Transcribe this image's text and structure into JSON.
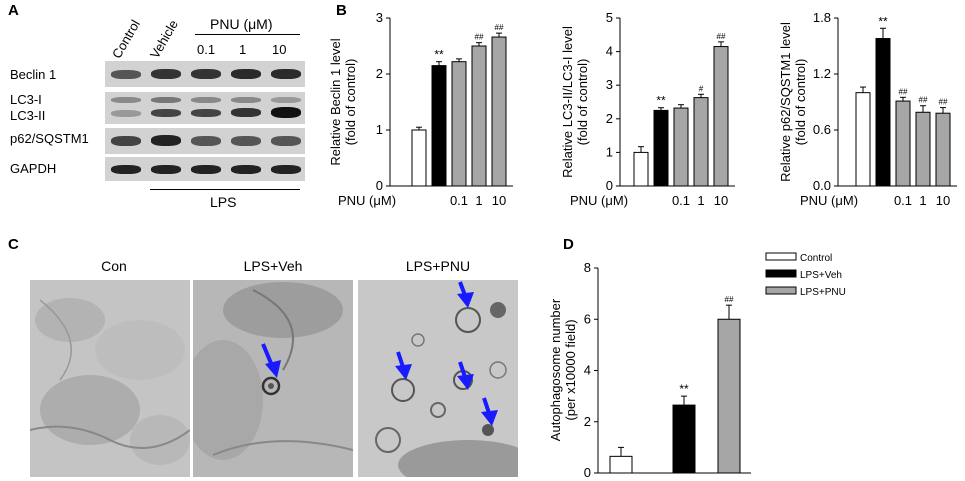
{
  "panel_A": {
    "panel_label": "A",
    "lane_headers": [
      "Control",
      "Vehicle"
    ],
    "pnu_header": "PNU (μM)",
    "doses": [
      "0.1",
      "1",
      "10"
    ],
    "rows": [
      "Beclin 1",
      "LC3-I",
      "LC3-II",
      "p62/SQSTM1",
      "GAPDH"
    ],
    "treatment": "LPS"
  },
  "panel_B": {
    "panel_label": "B"
  },
  "panel_C": {
    "panel_label": "C",
    "images": [
      "Con",
      "LPS+Veh",
      "LPS+PNU"
    ],
    "arrow_color": "#1a1aff"
  },
  "panel_D": {
    "panel_label": "D"
  },
  "colors": {
    "white": "#ffffff",
    "black": "#000000",
    "gray": "#a6a6a6"
  },
  "chart_data": [
    {
      "type": "bar",
      "ylabel": "Relative Beclin 1 level (fold of control)",
      "x_axis_label": "PNU (μM)",
      "categories": [
        "",
        "",
        "0.1",
        "1",
        "10"
      ],
      "values": [
        1.0,
        2.15,
        2.22,
        2.5,
        2.66
      ],
      "errors": [
        0.05,
        0.07,
        0.05,
        0.06,
        0.07
      ],
      "fills": [
        "white",
        "black",
        "gray",
        "gray",
        "gray"
      ],
      "significance": [
        "",
        "**",
        "",
        "##",
        "##"
      ],
      "ylim": [
        0,
        3
      ],
      "yticks": [
        "0",
        "1",
        "2",
        "3"
      ]
    },
    {
      "type": "bar",
      "ylabel": "Relative LC3-II/LC3-I level (fold of control)",
      "x_axis_label": "PNU (μM)",
      "categories": [
        "",
        "",
        "0.1",
        "1",
        "10"
      ],
      "values": [
        1.0,
        2.25,
        2.32,
        2.63,
        4.15
      ],
      "errors": [
        0.17,
        0.08,
        0.1,
        0.1,
        0.14
      ],
      "fills": [
        "white",
        "black",
        "gray",
        "gray",
        "gray"
      ],
      "significance": [
        "",
        "**",
        "",
        "#",
        "##"
      ],
      "ylim": [
        0,
        5
      ],
      "yticks": [
        "0",
        "1",
        "2",
        "3",
        "4",
        "5"
      ]
    },
    {
      "type": "bar",
      "ylabel": "Relative p62/SQSTM1 level (fold of control)",
      "x_axis_label": "PNU (μM)",
      "categories": [
        "",
        "",
        "0.1",
        "1",
        "10"
      ],
      "values": [
        1.0,
        1.58,
        0.91,
        0.79,
        0.78
      ],
      "errors": [
        0.06,
        0.11,
        0.04,
        0.07,
        0.06
      ],
      "fills": [
        "white",
        "black",
        "gray",
        "gray",
        "gray"
      ],
      "significance": [
        "",
        "**",
        "##",
        "##",
        "##"
      ],
      "ylim": [
        0,
        1.8
      ],
      "yticks": [
        "0.0",
        "0.6",
        "1.2",
        "1.8"
      ]
    },
    {
      "type": "bar",
      "ylabel": "Autophagosome number (per x10000 field)",
      "categories": [
        "Control",
        "LPS+Veh",
        "LPS+PNU"
      ],
      "values": [
        0.65,
        2.65,
        6.0
      ],
      "errors": [
        0.35,
        0.35,
        0.55
      ],
      "fills": [
        "white",
        "black",
        "gray"
      ],
      "significance": [
        "",
        "**",
        "##"
      ],
      "legend": [
        "Control",
        "LPS+Veh",
        "LPS+PNU"
      ],
      "legend_position": "top-right",
      "ylim": [
        0,
        8
      ],
      "yticks": [
        "0",
        "2",
        "4",
        "6",
        "8"
      ]
    }
  ]
}
